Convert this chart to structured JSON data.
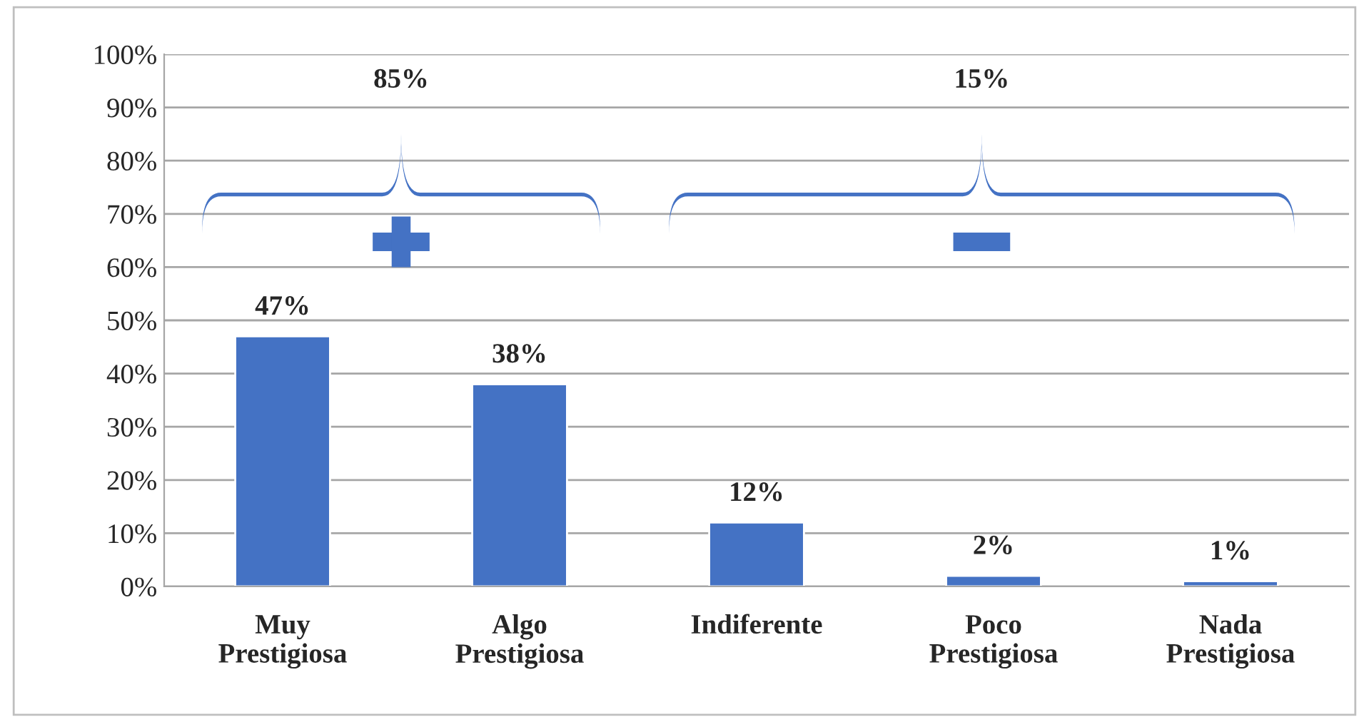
{
  "chart_data": {
    "type": "bar",
    "categories": [
      "Muy\nPrestigiosa",
      "Algo\nPrestigiosa",
      "Indiferente",
      "Poco\nPrestigiosa",
      "Nada\nPrestigiosa"
    ],
    "values": [
      47,
      38,
      12,
      2,
      1
    ],
    "value_labels": [
      "47%",
      "38%",
      "12%",
      "2%",
      "1%"
    ],
    "color": "#4472c4",
    "ylim": [
      0,
      100
    ],
    "yticks": [
      {
        "value": 0,
        "label": "0%"
      },
      {
        "value": 10,
        "label": "10%"
      },
      {
        "value": 20,
        "label": "20%"
      },
      {
        "value": 30,
        "label": "30%"
      },
      {
        "value": 40,
        "label": "40%"
      },
      {
        "value": 50,
        "label": "50%"
      },
      {
        "value": 60,
        "label": "60%"
      },
      {
        "value": 70,
        "label": "70%"
      },
      {
        "value": 80,
        "label": "80%"
      },
      {
        "value": 90,
        "label": "90%"
      },
      {
        "value": 100,
        "label": "100%"
      }
    ],
    "grid": "y",
    "annotations": [
      "85%",
      "15%"
    ]
  }
}
